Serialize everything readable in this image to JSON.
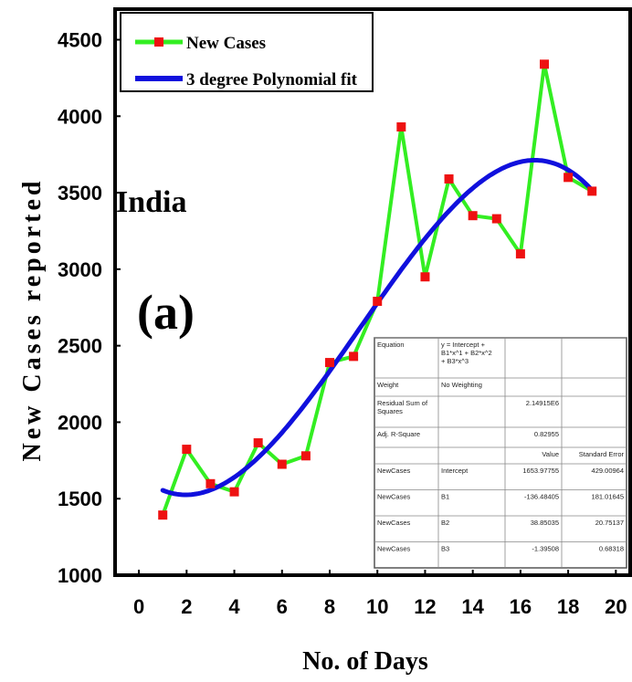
{
  "chart_data": {
    "type": "line",
    "xlabel": "No. of Days",
    "ylabel": "New Cases reported",
    "xlim": [
      -1,
      20.6
    ],
    "ylim": [
      1000,
      4700
    ],
    "xticks": [
      0,
      2,
      4,
      6,
      8,
      10,
      12,
      14,
      16,
      18,
      20
    ],
    "yticks": [
      1000,
      1500,
      2000,
      2500,
      3000,
      3500,
      4000,
      4500
    ],
    "legend_position": "top-left",
    "grid": false,
    "annotations": [
      "India",
      "(a)"
    ],
    "series": [
      {
        "name": "New Cases",
        "color": "#33ee22",
        "marker_color": "#ee1111",
        "x": [
          1,
          2,
          3,
          4,
          5,
          6,
          7,
          8,
          9,
          10,
          11,
          12,
          13,
          14,
          15,
          16,
          17,
          18,
          19
        ],
        "values": [
          1393,
          1823,
          1598,
          1545,
          1865,
          1725,
          1780,
          2390,
          2430,
          2790,
          3930,
          2950,
          3590,
          3350,
          3330,
          3100,
          4340,
          3600,
          3510
        ]
      },
      {
        "name": "3 degree Polynomial fit",
        "color": "#1010dd",
        "x_range": [
          1,
          19
        ],
        "coefficients": [
          1653.97755,
          -136.48405,
          38.85035,
          -1.39508
        ]
      }
    ],
    "fit_table": {
      "rows": [
        [
          "Equation",
          "y = Intercept + B1*x^1 + B2*x^2 + B3*x^3",
          "",
          ""
        ],
        [
          "Weight",
          "No Weighting",
          "",
          ""
        ],
        [
          "Residual Sum of Squares",
          "",
          "2.14915E6",
          ""
        ],
        [
          "Adj. R-Square",
          "",
          "0.82955",
          ""
        ],
        [
          "",
          "",
          "Value",
          "Standard Error"
        ],
        [
          "NewCases",
          "Intercept",
          "1653.97755",
          "429.00964"
        ],
        [
          "NewCases",
          "B1",
          "-136.48405",
          "181.01645"
        ],
        [
          "NewCases",
          "B2",
          "38.85035",
          "20.75137"
        ],
        [
          "NewCases",
          "B3",
          "-1.39508",
          "0.68318"
        ]
      ]
    }
  }
}
